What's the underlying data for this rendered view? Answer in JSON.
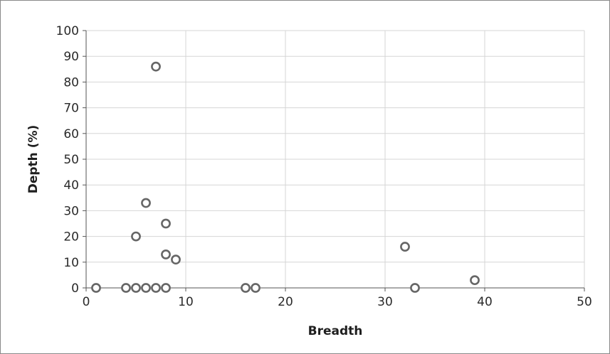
{
  "chart_data": {
    "type": "scatter",
    "title": "",
    "xlabel": "Breadth",
    "ylabel": "Depth (%)",
    "xlim": [
      0,
      50
    ],
    "ylim": [
      0,
      100
    ],
    "xticks": [
      0,
      10,
      20,
      30,
      40,
      50
    ],
    "yticks": [
      0,
      10,
      20,
      30,
      40,
      50,
      60,
      70,
      80,
      90,
      100
    ],
    "grid": true,
    "marker": "open-circle",
    "marker_color": "#666666",
    "points": [
      {
        "x": 7,
        "y": 86
      },
      {
        "x": 6,
        "y": 33
      },
      {
        "x": 8,
        "y": 25
      },
      {
        "x": 5,
        "y": 20
      },
      {
        "x": 8,
        "y": 13
      },
      {
        "x": 9,
        "y": 11
      },
      {
        "x": 32,
        "y": 16
      },
      {
        "x": 39,
        "y": 3
      },
      {
        "x": 1,
        "y": 0
      },
      {
        "x": 4,
        "y": 0
      },
      {
        "x": 5,
        "y": 0
      },
      {
        "x": 6,
        "y": 0
      },
      {
        "x": 7,
        "y": 0
      },
      {
        "x": 8,
        "y": 0
      },
      {
        "x": 16,
        "y": 0
      },
      {
        "x": 17,
        "y": 0
      },
      {
        "x": 33,
        "y": 0
      }
    ]
  }
}
